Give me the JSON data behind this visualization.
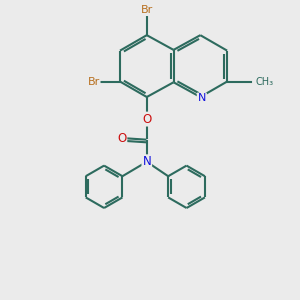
{
  "background_color": "#ebebeb",
  "bond_color": "#2d6b5e",
  "atom_colors": {
    "Br": "#b87020",
    "N": "#1010dd",
    "O": "#cc1010",
    "C": "#2d6b5e"
  },
  "lw": 1.5,
  "dbl_sep": 0.13,
  "dbl_shorten": 0.12
}
